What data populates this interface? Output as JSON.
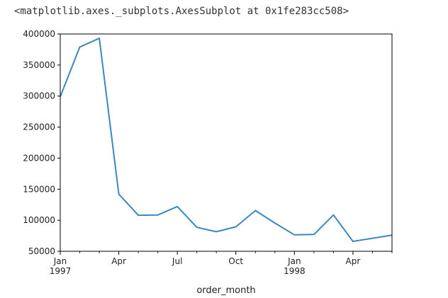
{
  "output_repr": "<matplotlib.axes._subplots.AxesSubplot at 0x1fe283cc508>",
  "chart_data": {
    "type": "line",
    "title": "",
    "xlabel": "order_month",
    "ylabel": "",
    "ylim": [
      50000,
      400000
    ],
    "xlim": [
      "1997-01",
      "1998-06"
    ],
    "grid": false,
    "line_color": "#3a87c2",
    "x": [
      "1997-01",
      "1997-02",
      "1997-03",
      "1997-04",
      "1997-05",
      "1997-06",
      "1997-07",
      "1997-08",
      "1997-09",
      "1997-10",
      "1997-11",
      "1997-12",
      "1998-01",
      "1998-02",
      "1998-03",
      "1998-04",
      "1998-05",
      "1998-06"
    ],
    "series": [
      {
        "values": [
          299000,
          379000,
          393000,
          142000,
          108000,
          108500,
          122000,
          88500,
          81500,
          89500,
          115500,
          95500,
          76500,
          77000,
          108500,
          66000,
          71000,
          76000
        ]
      }
    ],
    "y_ticks": [
      50000,
      100000,
      150000,
      200000,
      250000,
      300000,
      350000,
      400000
    ],
    "x_ticks": [
      {
        "x": "1997-01",
        "label": "Jan",
        "sublabel": "1997"
      },
      {
        "x": "1997-04",
        "label": "Apr",
        "sublabel": ""
      },
      {
        "x": "1997-07",
        "label": "Jul",
        "sublabel": ""
      },
      {
        "x": "1997-10",
        "label": "Oct",
        "sublabel": ""
      },
      {
        "x": "1998-01",
        "label": "Jan",
        "sublabel": "1998"
      },
      {
        "x": "1998-04",
        "label": "Apr",
        "sublabel": ""
      }
    ]
  }
}
